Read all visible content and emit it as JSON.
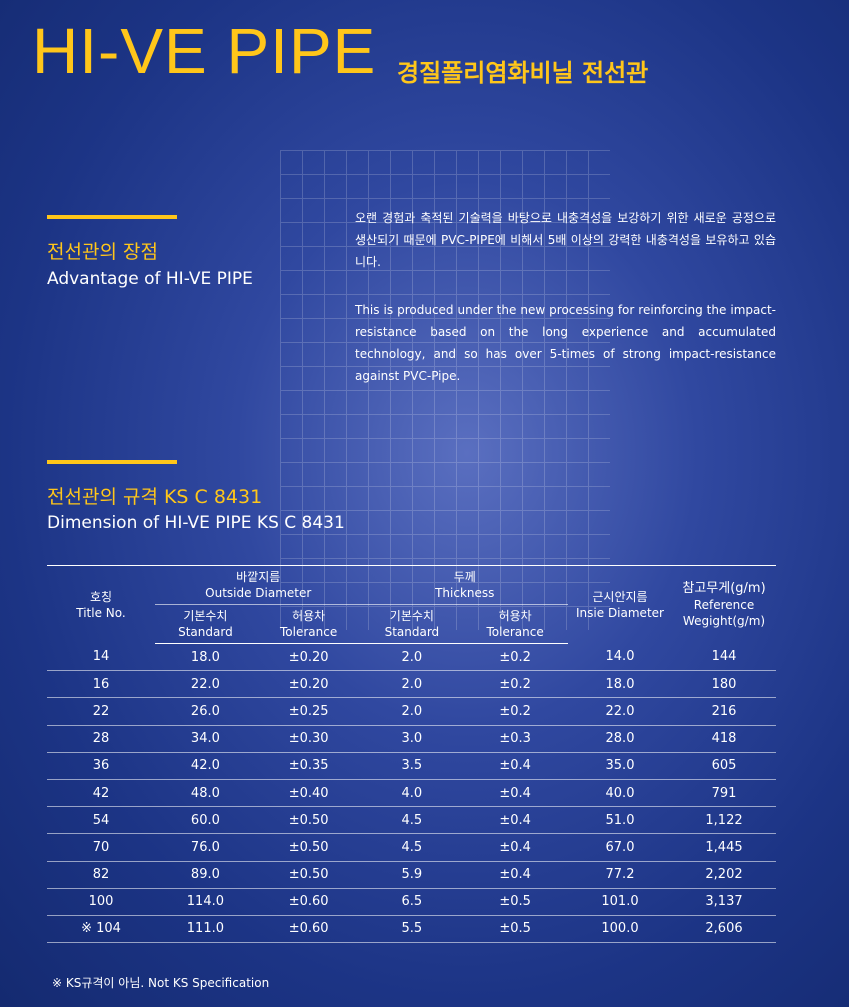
{
  "header": {
    "title": "HI-VE PIPE",
    "subtitle": "경질폴리염화비닐 전선관"
  },
  "advantage": {
    "heading_ko": "전선관의 장점",
    "heading_en": "Advantage of HI-VE PIPE",
    "body_ko": "오랜 경험과 축적된 기술력을 바탕으로 내충격성을 보강하기 위한 새로운 공정으로 생산되기 때문에 PVC-PIPE에 비해서 5배 이상의 강력한 내충격성을 보유하고 있습니다.",
    "body_en": "This is produced under the new processing for reinforcing the impact-resistance based on the long experience and accumulated technology, and so has over 5-times of strong impact-resistance against PVC-Pipe."
  },
  "dimension": {
    "heading_ko": "전선관의 규격 KS C 8431",
    "heading_en": "Dimension of HI-VE PIPE KS C 8431"
  },
  "table": {
    "headers": {
      "title_no": {
        "ko": "호칭",
        "en": "Title No."
      },
      "outside": {
        "ko": "바깥지름",
        "en": "Outside Diameter"
      },
      "thickness": {
        "ko": "두께",
        "en": "Thickness"
      },
      "inside": {
        "ko": "근시안지름",
        "en": "Insie Diameter"
      },
      "weight": {
        "ko": "참고무게(g/m)",
        "en": "Reference Wegight(g/m)"
      },
      "od_standard": {
        "ko": "기본수치",
        "en": "Standard"
      },
      "od_tolerance": {
        "ko": "허용차",
        "en": "Tolerance"
      },
      "th_standard": {
        "ko": "기본수치",
        "en": "Standard"
      },
      "th_tolerance": {
        "ko": "허용차",
        "en": "Tolerance"
      }
    },
    "rows": [
      [
        "14",
        "18.0",
        "±0.20",
        "2.0",
        "±0.2",
        "14.0",
        "144"
      ],
      [
        "16",
        "22.0",
        "±0.20",
        "2.0",
        "±0.2",
        "18.0",
        "180"
      ],
      [
        "22",
        "26.0",
        "±0.25",
        "2.0",
        "±0.2",
        "22.0",
        "216"
      ],
      [
        "28",
        "34.0",
        "±0.30",
        "3.0",
        "±0.3",
        "28.0",
        "418"
      ],
      [
        "36",
        "42.0",
        "±0.35",
        "3.5",
        "±0.4",
        "35.0",
        "605"
      ],
      [
        "42",
        "48.0",
        "±0.40",
        "4.0",
        "±0.4",
        "40.0",
        "791"
      ],
      [
        "54",
        "60.0",
        "±0.50",
        "4.5",
        "±0.4",
        "51.0",
        "1,122"
      ],
      [
        "70",
        "76.0",
        "±0.50",
        "4.5",
        "±0.4",
        "67.0",
        "1,445"
      ],
      [
        "82",
        "89.0",
        "±0.50",
        "5.9",
        "±0.4",
        "77.2",
        "2,202"
      ],
      [
        "100",
        "114.0",
        "±0.60",
        "6.5",
        "±0.5",
        "101.0",
        "3,137"
      ],
      [
        "※ 104",
        "111.0",
        "±0.60",
        "5.5",
        "±0.5",
        "100.0",
        "2,606"
      ]
    ]
  },
  "footnote": "※ KS규격이 아님. Not KS Specification"
}
